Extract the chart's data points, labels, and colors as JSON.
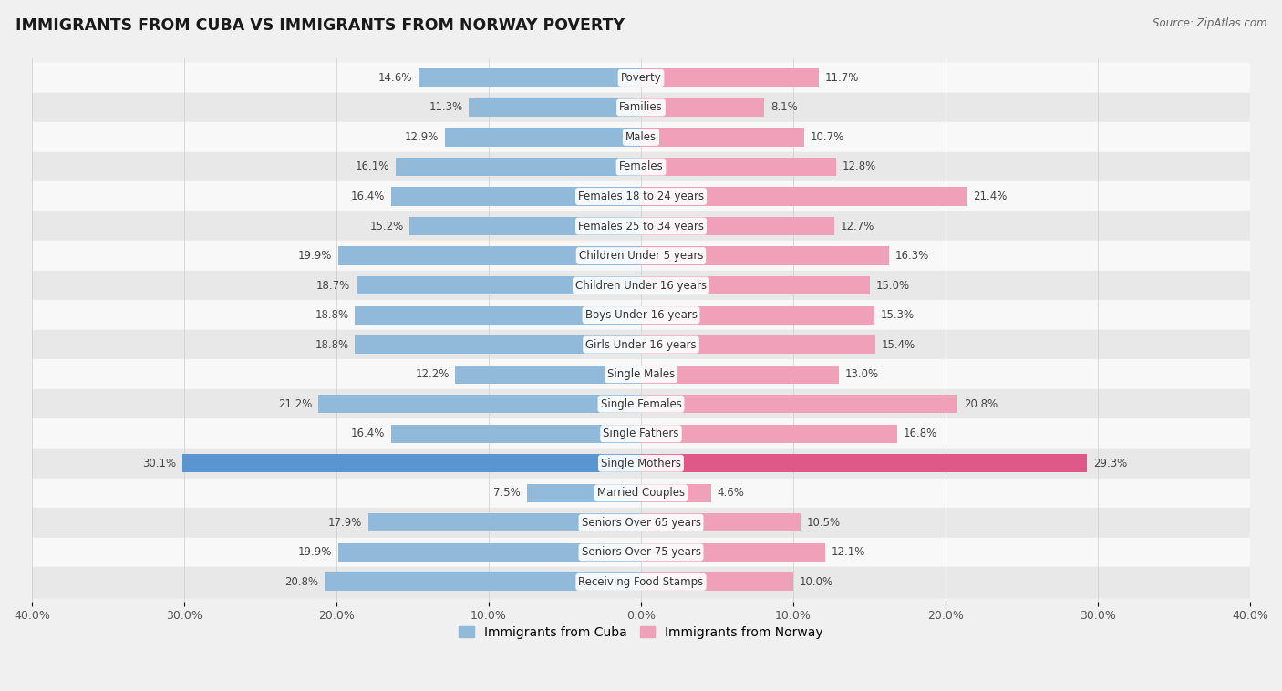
{
  "title": "IMMIGRANTS FROM CUBA VS IMMIGRANTS FROM NORWAY POVERTY",
  "source": "Source: ZipAtlas.com",
  "categories": [
    "Poverty",
    "Families",
    "Males",
    "Females",
    "Females 18 to 24 years",
    "Females 25 to 34 years",
    "Children Under 5 years",
    "Children Under 16 years",
    "Boys Under 16 years",
    "Girls Under 16 years",
    "Single Males",
    "Single Females",
    "Single Fathers",
    "Single Mothers",
    "Married Couples",
    "Seniors Over 65 years",
    "Seniors Over 75 years",
    "Receiving Food Stamps"
  ],
  "cuba_values": [
    14.6,
    11.3,
    12.9,
    16.1,
    16.4,
    15.2,
    19.9,
    18.7,
    18.8,
    18.8,
    12.2,
    21.2,
    16.4,
    30.1,
    7.5,
    17.9,
    19.9,
    20.8
  ],
  "norway_values": [
    11.7,
    8.1,
    10.7,
    12.8,
    21.4,
    12.7,
    16.3,
    15.0,
    15.3,
    15.4,
    13.0,
    20.8,
    16.8,
    29.3,
    4.6,
    10.5,
    12.1,
    10.0
  ],
  "cuba_color": "#91b9d9",
  "norway_color": "#f0a0b8",
  "cuba_highlight_color": "#5b95d0",
  "norway_highlight_color": "#e05888",
  "highlight_rows": [
    13
  ],
  "xlim": 40.0,
  "bar_height": 0.62,
  "bg_color": "#f0f0f0",
  "row_alt_color": "#e8e8e8",
  "row_main_color": "#f8f8f8",
  "legend_cuba": "Immigrants from Cuba",
  "legend_norway": "Immigrants from Norway",
  "tick_positions": [
    -40,
    -30,
    -20,
    -10,
    0,
    10,
    20,
    30,
    40
  ],
  "tick_labels": [
    "40.0%",
    "30.0%",
    "20.0%",
    "10.0%",
    "0.0%",
    "10.0%",
    "20.0%",
    "30.0%",
    "40.0%"
  ]
}
